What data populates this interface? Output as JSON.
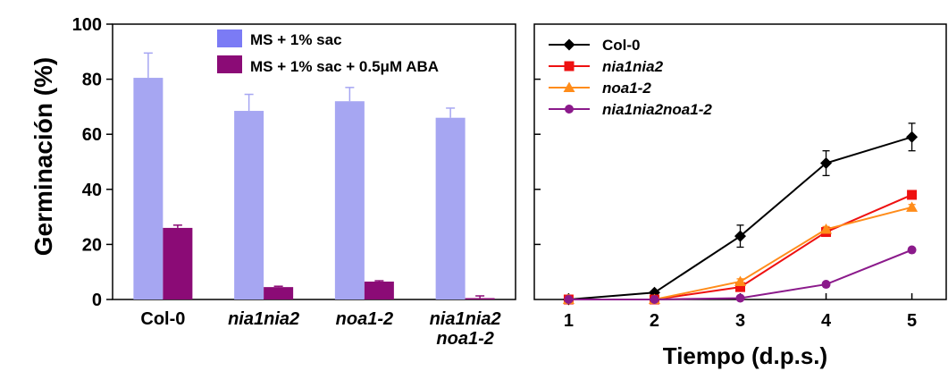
{
  "chart_data": [
    {
      "type": "bar",
      "title": "",
      "xlabel": "",
      "ylabel": "Germinación (%)",
      "ylim": [
        0,
        100
      ],
      "yticks": [
        0,
        20,
        40,
        60,
        80,
        100
      ],
      "categories": [
        {
          "line1": "Col-0",
          "line2": "",
          "italic": false
        },
        {
          "line1": "nia1nia2",
          "line2": "",
          "italic": true
        },
        {
          "line1": "noa1-2",
          "line2": "",
          "italic": true
        },
        {
          "line1": "nia1nia2",
          "line2": "noa1-2",
          "italic": true
        }
      ],
      "series": [
        {
          "name": "MS + 1% sac",
          "color": "#a6a6f2",
          "legend_color": "#7b7bf5",
          "values": [
            80.5,
            68.5,
            72,
            66
          ],
          "errors": [
            9,
            6,
            5,
            3.5
          ]
        },
        {
          "name": "MS + 1% sac + 0.5μM ABA",
          "color": "#8b0b76",
          "legend_color": "#8b0b76",
          "values": [
            26,
            4.5,
            6.5,
            0.5
          ],
          "errors": [
            1,
            0.3,
            0.3,
            0.8
          ]
        }
      ],
      "legend_position": "top"
    },
    {
      "type": "line",
      "title": "",
      "xlabel": "Tiempo (d.p.s.)",
      "ylabel": "",
      "x": [
        1,
        2,
        3,
        4,
        5
      ],
      "xlim": [
        0.6,
        5.4
      ],
      "ylim": [
        0,
        100
      ],
      "series": [
        {
          "name": "Col-0",
          "italic": false,
          "color": "#000000",
          "marker": "diamond",
          "values": [
            0,
            2.5,
            23,
            49.5,
            59
          ],
          "errors": [
            0.5,
            0.5,
            4,
            4.5,
            5
          ]
        },
        {
          "name": "nia1nia2",
          "italic": true,
          "color": "#ee1111",
          "marker": "square",
          "values": [
            0,
            0,
            4.5,
            24.5,
            38
          ],
          "errors": [
            0,
            0,
            1,
            1,
            1
          ]
        },
        {
          "name": "noa1-2",
          "italic": true,
          "color": "#ff8c1a",
          "marker": "triangle",
          "values": [
            0,
            0,
            6.5,
            25.5,
            33.5
          ],
          "errors": [
            0,
            0,
            1,
            1,
            1
          ]
        },
        {
          "name": "nia1nia2noa1-2",
          "italic": true,
          "color": "#8b1a8b",
          "marker": "circle",
          "values": [
            0,
            0,
            0.5,
            5.5,
            18
          ],
          "errors": [
            0,
            0,
            0,
            0.5,
            0.5
          ]
        }
      ],
      "legend_position": "top-left"
    }
  ]
}
